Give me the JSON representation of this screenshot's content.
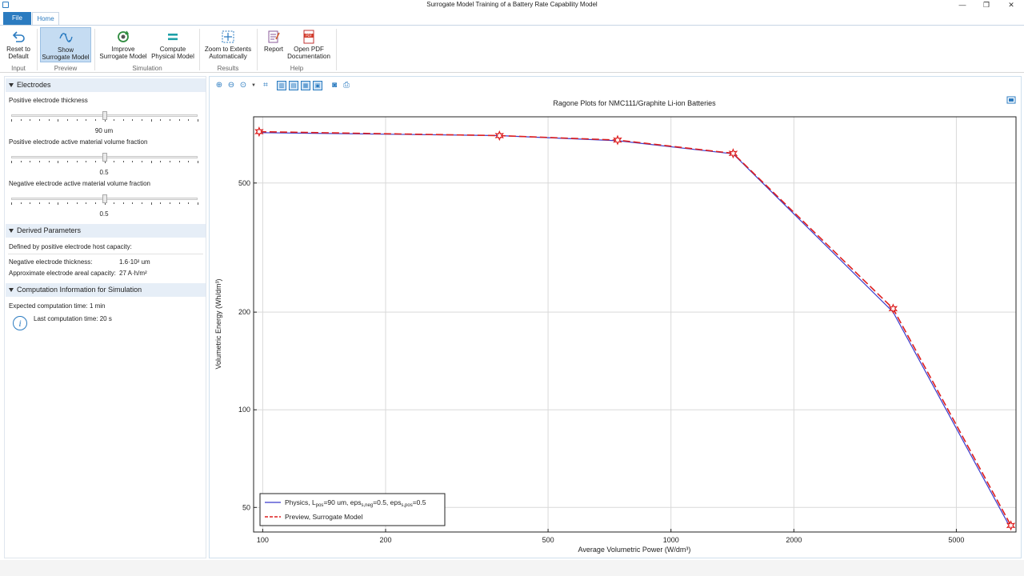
{
  "window": {
    "title": "Surrogate Model Training of a Battery Rate Capability Model",
    "minimize": "—",
    "restore": "❐",
    "close": "✕"
  },
  "tabs": {
    "file": "File",
    "home": "Home"
  },
  "ribbon": {
    "reset": {
      "line1": "Reset to",
      "line2": "Default"
    },
    "show_surrogate": {
      "line1": "Show",
      "line2": "Surrogate Model"
    },
    "improve": {
      "line1": "Improve",
      "line2": "Surrogate Model"
    },
    "compute": {
      "line1": "Compute",
      "line2": "Physical Model"
    },
    "zoom": {
      "line1": "Zoom to Extents",
      "line2": "Automatically"
    },
    "report": {
      "line1": "Report"
    },
    "open_pdf": {
      "line1": "Open PDF",
      "line2": "Documentation"
    },
    "groups": {
      "input": "Input",
      "preview": "Preview",
      "simulation": "Simulation",
      "results": "Results",
      "help": "Help"
    }
  },
  "sidebar": {
    "electrodes": {
      "header": "Electrodes",
      "thickness": {
        "label": "Positive electrode thickness",
        "value": "90 um",
        "level": 0.5
      },
      "pos_fraction": {
        "label": "Positive electrode active material volume fraction",
        "value": "0.5",
        "level": 0.5
      },
      "neg_fraction": {
        "label": "Negative electrode active material volume fraction",
        "value": "0.5",
        "level": 0.5
      }
    },
    "derived": {
      "header": "Derived Parameters",
      "defined_by": "Defined by positive electrode host capacity:",
      "neg_thickness_label": "Negative electrode thickness:",
      "neg_thickness_value": "1.6·10² um",
      "areal_capacity_label": "Approximate electrode areal capacity:",
      "areal_capacity_value": "27 A·h/m²"
    },
    "computation": {
      "header": "Computation Information for Simulation",
      "expected": "Expected computation time:   1 min",
      "last": "Last computation time: 20 s"
    }
  },
  "chart_data": {
    "type": "line",
    "title": "Ragone Plots for NMC111/Graphite Li-ion Batteries",
    "xlabel": "Average Volumetric Power (W/dm³)",
    "ylabel": "Volumetric Energy (Wh/dm³)",
    "xscale": "log",
    "yscale": "log",
    "xlim": [
      95,
      7000
    ],
    "ylim": [
      42,
      800
    ],
    "xticks": [
      100,
      200,
      500,
      1000,
      2000,
      5000
    ],
    "yticks": [
      50,
      100,
      200,
      500
    ],
    "grid": true,
    "legend_position": "bottom-left",
    "series": [
      {
        "name": "Physics, L_pos=90 um, eps_s,neg=0.5, eps_s,pos=0.5",
        "legend_main": "Physics, L",
        "legend_parts": [
          {
            "t": "Physics, L",
            "sub": false
          },
          {
            "t": "pos",
            "sub": true
          },
          {
            "t": "=90 um, eps",
            "sub": false
          },
          {
            "t": "s,neg",
            "sub": true
          },
          {
            "t": "=0.5, eps",
            "sub": false
          },
          {
            "t": "s,pos",
            "sub": true
          },
          {
            "t": "=0.5",
            "sub": false
          }
        ],
        "color": "#3b3bcc",
        "style": "solid",
        "x": [
          98,
          380,
          740,
          1420,
          3500,
          6800
        ],
        "y": [
          715,
          700,
          675,
          615,
          200,
          43
        ]
      },
      {
        "name": "Preview, Surrogate Model",
        "color": "#dd1f1f",
        "style": "dashed",
        "marker": "star",
        "x": [
          98,
          380,
          740,
          1420,
          3500,
          6800
        ],
        "y": [
          720,
          700,
          678,
          617,
          205,
          44
        ]
      }
    ]
  }
}
